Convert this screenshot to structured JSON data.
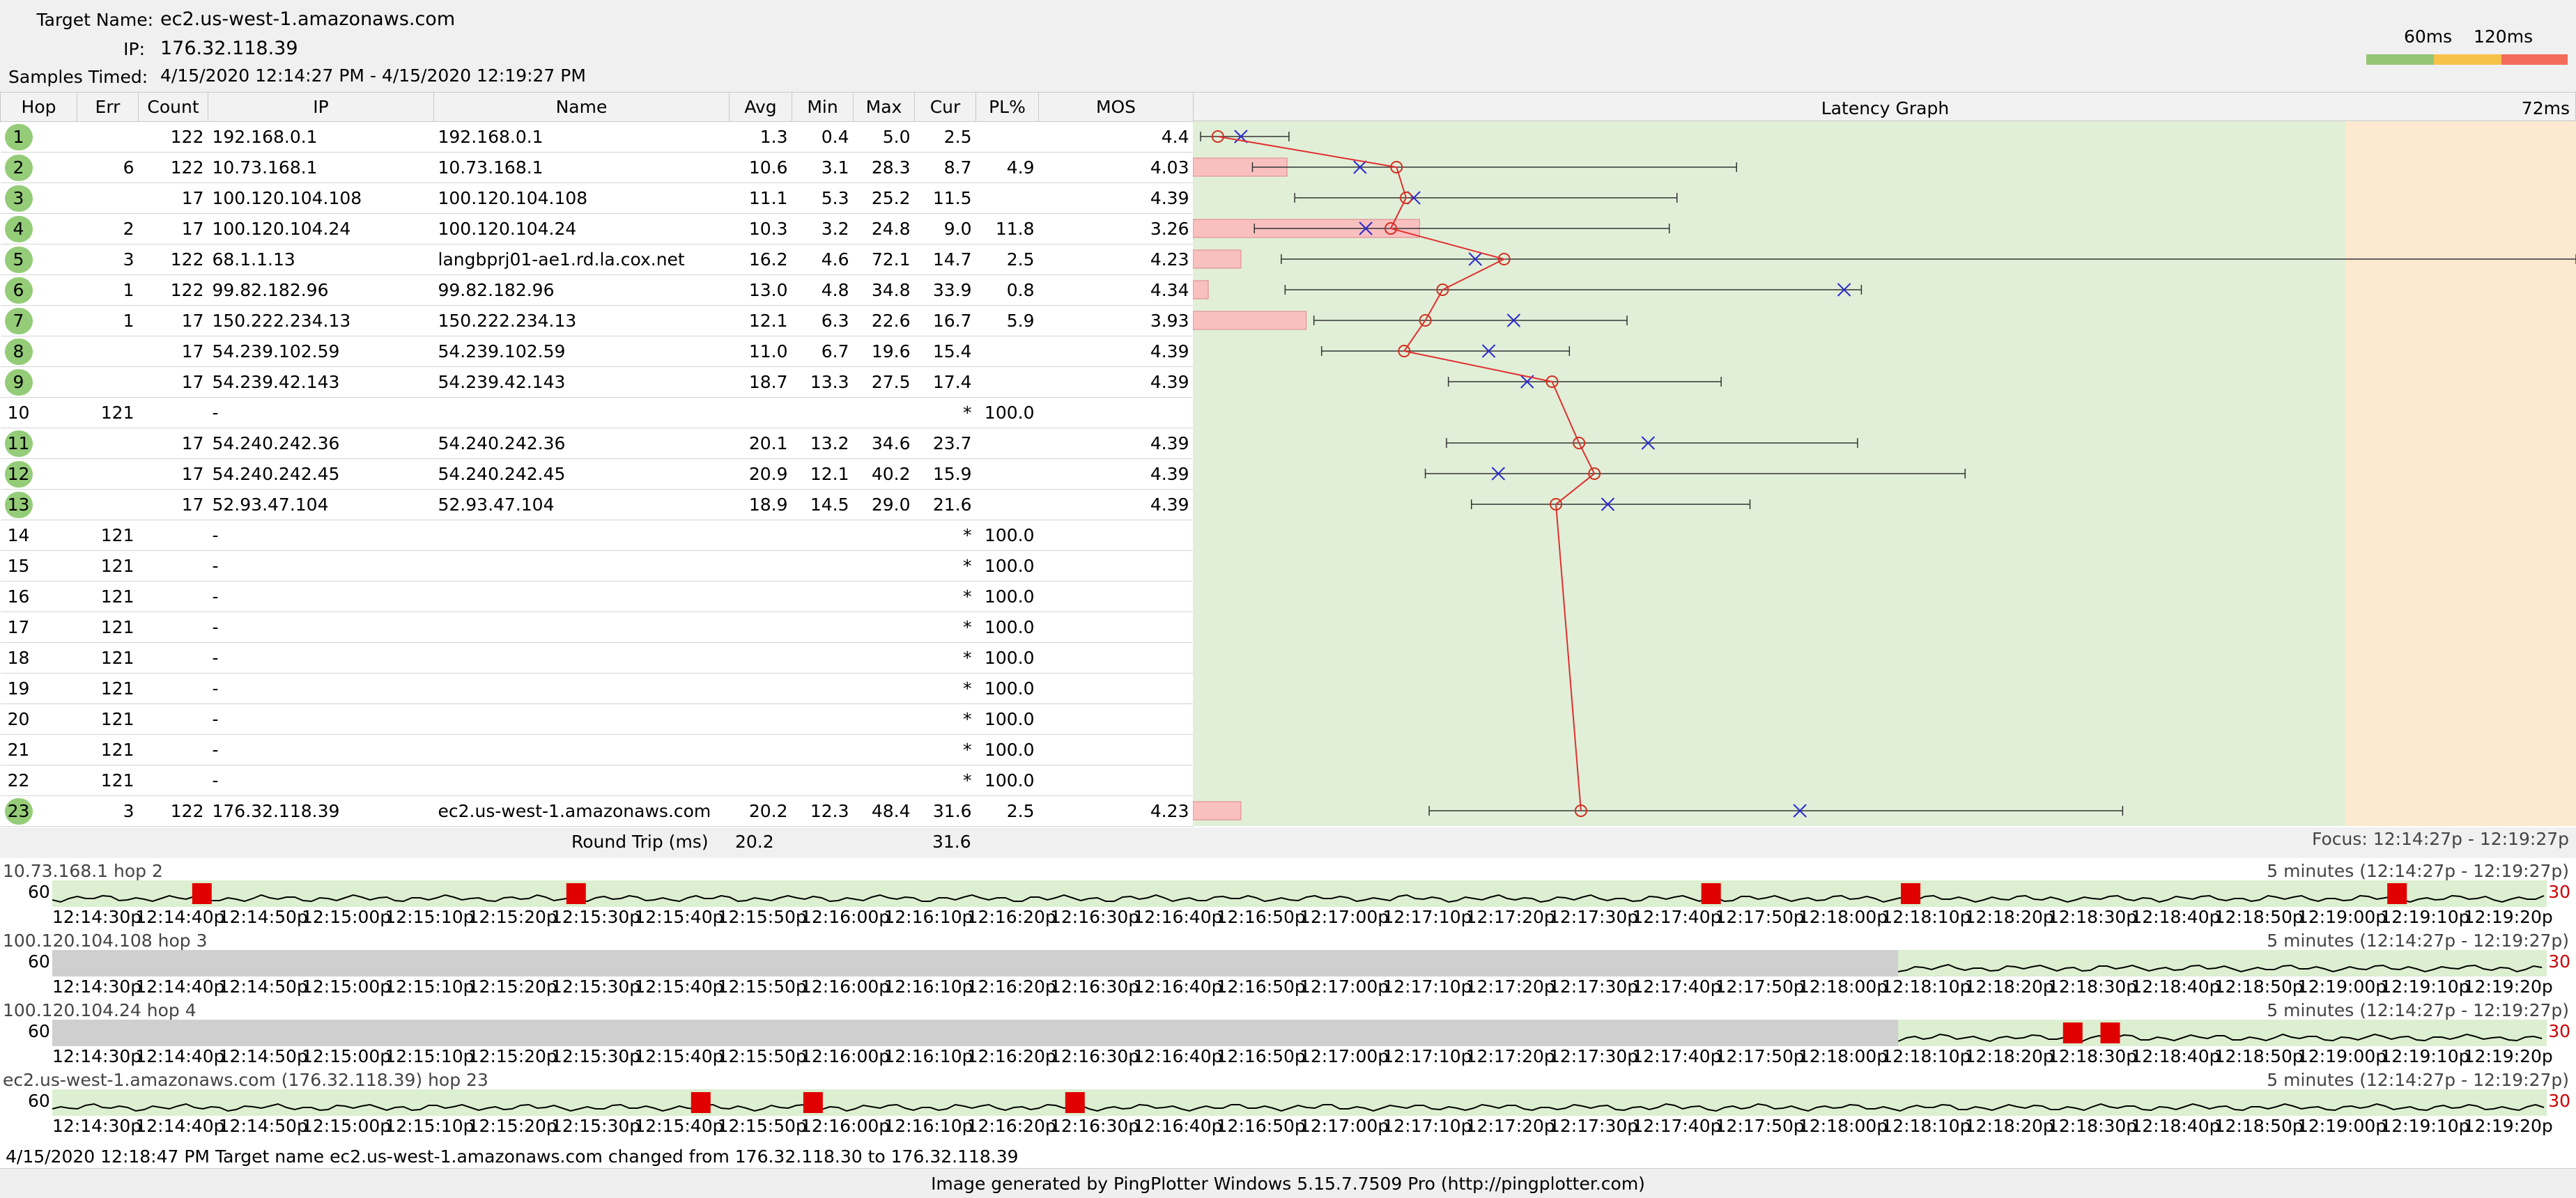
{
  "header": {
    "target_label": "Target Name:",
    "target_value": "ec2.us-west-1.amazonaws.com",
    "ip_label": "IP:",
    "ip_value": "176.32.118.39",
    "samples_label": "Samples Timed:",
    "samples_value": "4/15/2020 12:14:27 PM - 4/15/2020 12:19:27 PM"
  },
  "scale": {
    "label_60": "60ms",
    "label_120": "120ms",
    "colors": [
      "#93c572",
      "#f7c24a",
      "#f26b5b"
    ]
  },
  "table": {
    "columns": [
      "Hop",
      "Err",
      "Count",
      "IP",
      "Name",
      "Avg",
      "Min",
      "Max",
      "Cur",
      "PL%",
      "MOS",
      "Latency Graph",
      "72ms"
    ],
    "rows": [
      {
        "hop": "1",
        "err": "",
        "count": "122",
        "ip": "192.168.0.1",
        "name": "192.168.0.1",
        "avg": "1.3",
        "min": "0.4",
        "max": "5.0",
        "cur": "2.5",
        "pl": "",
        "mos": "4.4",
        "green": true
      },
      {
        "hop": "2",
        "err": "6",
        "count": "122",
        "ip": "10.73.168.1",
        "name": "10.73.168.1",
        "avg": "10.6",
        "min": "3.1",
        "max": "28.3",
        "cur": "8.7",
        "pl": "4.9",
        "mos": "4.03",
        "green": true
      },
      {
        "hop": "3",
        "err": "",
        "count": "17",
        "ip": "100.120.104.108",
        "name": "100.120.104.108",
        "avg": "11.1",
        "min": "5.3",
        "max": "25.2",
        "cur": "11.5",
        "pl": "",
        "mos": "4.39",
        "green": true
      },
      {
        "hop": "4",
        "err": "2",
        "count": "17",
        "ip": "100.120.104.24",
        "name": "100.120.104.24",
        "avg": "10.3",
        "min": "3.2",
        "max": "24.8",
        "cur": "9.0",
        "pl": "11.8",
        "mos": "3.26",
        "green": true
      },
      {
        "hop": "5",
        "err": "3",
        "count": "122",
        "ip": "68.1.1.13",
        "name": "langbprj01-ae1.rd.la.cox.net",
        "avg": "16.2",
        "min": "4.6",
        "max": "72.1",
        "cur": "14.7",
        "pl": "2.5",
        "mos": "4.23",
        "green": true
      },
      {
        "hop": "6",
        "err": "1",
        "count": "122",
        "ip": "99.82.182.96",
        "name": "99.82.182.96",
        "avg": "13.0",
        "min": "4.8",
        "max": "34.8",
        "cur": "33.9",
        "pl": "0.8",
        "mos": "4.34",
        "green": true
      },
      {
        "hop": "7",
        "err": "1",
        "count": "17",
        "ip": "150.222.234.13",
        "name": "150.222.234.13",
        "avg": "12.1",
        "min": "6.3",
        "max": "22.6",
        "cur": "16.7",
        "pl": "5.9",
        "mos": "3.93",
        "green": true
      },
      {
        "hop": "8",
        "err": "",
        "count": "17",
        "ip": "54.239.102.59",
        "name": "54.239.102.59",
        "avg": "11.0",
        "min": "6.7",
        "max": "19.6",
        "cur": "15.4",
        "pl": "",
        "mos": "4.39",
        "green": true
      },
      {
        "hop": "9",
        "err": "",
        "count": "17",
        "ip": "54.239.42.143",
        "name": "54.239.42.143",
        "avg": "18.7",
        "min": "13.3",
        "max": "27.5",
        "cur": "17.4",
        "pl": "",
        "mos": "4.39",
        "green": true
      },
      {
        "hop": "10",
        "err": "121",
        "count": "",
        "ip": "-",
        "name": "",
        "avg": "",
        "min": "",
        "max": "",
        "cur": "*",
        "pl": "100.0",
        "mos": "",
        "green": false
      },
      {
        "hop": "11",
        "err": "",
        "count": "17",
        "ip": "54.240.242.36",
        "name": "54.240.242.36",
        "avg": "20.1",
        "min": "13.2",
        "max": "34.6",
        "cur": "23.7",
        "pl": "",
        "mos": "4.39",
        "green": true
      },
      {
        "hop": "12",
        "err": "",
        "count": "17",
        "ip": "54.240.242.45",
        "name": "54.240.242.45",
        "avg": "20.9",
        "min": "12.1",
        "max": "40.2",
        "cur": "15.9",
        "pl": "",
        "mos": "4.39",
        "green": true
      },
      {
        "hop": "13",
        "err": "",
        "count": "17",
        "ip": "52.93.47.104",
        "name": "52.93.47.104",
        "avg": "18.9",
        "min": "14.5",
        "max": "29.0",
        "cur": "21.6",
        "pl": "",
        "mos": "4.39",
        "green": true
      },
      {
        "hop": "14",
        "err": "121",
        "count": "",
        "ip": "-",
        "name": "",
        "avg": "",
        "min": "",
        "max": "",
        "cur": "*",
        "pl": "100.0",
        "mos": "",
        "green": false
      },
      {
        "hop": "15",
        "err": "121",
        "count": "",
        "ip": "-",
        "name": "",
        "avg": "",
        "min": "",
        "max": "",
        "cur": "*",
        "pl": "100.0",
        "mos": "",
        "green": false
      },
      {
        "hop": "16",
        "err": "121",
        "count": "",
        "ip": "-",
        "name": "",
        "avg": "",
        "min": "",
        "max": "",
        "cur": "*",
        "pl": "100.0",
        "mos": "",
        "green": false
      },
      {
        "hop": "17",
        "err": "121",
        "count": "",
        "ip": "-",
        "name": "",
        "avg": "",
        "min": "",
        "max": "",
        "cur": "*",
        "pl": "100.0",
        "mos": "",
        "green": false
      },
      {
        "hop": "18",
        "err": "121",
        "count": "",
        "ip": "-",
        "name": "",
        "avg": "",
        "min": "",
        "max": "",
        "cur": "*",
        "pl": "100.0",
        "mos": "",
        "green": false
      },
      {
        "hop": "19",
        "err": "121",
        "count": "",
        "ip": "-",
        "name": "",
        "avg": "",
        "min": "",
        "max": "",
        "cur": "*",
        "pl": "100.0",
        "mos": "",
        "green": false
      },
      {
        "hop": "20",
        "err": "121",
        "count": "",
        "ip": "-",
        "name": "",
        "avg": "",
        "min": "",
        "max": "",
        "cur": "*",
        "pl": "100.0",
        "mos": "",
        "green": false
      },
      {
        "hop": "21",
        "err": "121",
        "count": "",
        "ip": "-",
        "name": "",
        "avg": "",
        "min": "",
        "max": "",
        "cur": "*",
        "pl": "100.0",
        "mos": "",
        "green": false
      },
      {
        "hop": "22",
        "err": "121",
        "count": "",
        "ip": "-",
        "name": "",
        "avg": "",
        "min": "",
        "max": "",
        "cur": "*",
        "pl": "100.0",
        "mos": "",
        "green": false
      },
      {
        "hop": "23",
        "err": "3",
        "count": "122",
        "ip": "176.32.118.39",
        "name": "ec2.us-west-1.amazonaws.com",
        "avg": "20.2",
        "min": "12.3",
        "max": "48.4",
        "cur": "31.6",
        "pl": "2.5",
        "mos": "4.23",
        "green": true
      }
    ],
    "round_trip_label": "Round Trip (ms)",
    "round_trip_avg": "20.2",
    "round_trip_cur": "31.6",
    "focus": "Focus: 12:14:27p - 12:19:27p"
  },
  "latency_graph": {
    "max_ms": 72,
    "threshold_ms": 60,
    "bg_ok": "#e1efd8",
    "bg_warn": "#fde9d0"
  },
  "mini_graphs": [
    {
      "title": "10.73.168.1 hop 2",
      "range": "5 minutes (12:14:27p - 12:19:27p)",
      "scale_top": "60",
      "scale_right": "30",
      "gray_until": 0,
      "loss_marks": [
        0.06,
        0.21,
        0.665,
        0.745,
        0.94
      ]
    },
    {
      "title": "100.120.104.108 hop 3",
      "range": "5 minutes (12:14:27p - 12:19:27p)",
      "scale_top": "60",
      "scale_right": "30",
      "gray_until": 0.74,
      "loss_marks": []
    },
    {
      "title": "100.120.104.24 hop 4",
      "range": "5 minutes (12:14:27p - 12:19:27p)",
      "scale_top": "60",
      "scale_right": "30",
      "gray_until": 0.74,
      "loss_marks": [
        0.81,
        0.825
      ]
    },
    {
      "title": "ec2.us-west-1.amazonaws.com (176.32.118.39) hop 23",
      "range": "5 minutes (12:14:27p - 12:19:27p)",
      "scale_top": "60",
      "scale_right": "30",
      "gray_until": 0,
      "loss_marks": [
        0.26,
        0.305,
        0.41
      ]
    }
  ],
  "time_ticks": [
    "12:14:30p",
    "12:14:40p",
    "12:14:50p",
    "12:15:00p",
    "12:15:10p",
    "12:15:20p",
    "12:15:30p",
    "12:15:40p",
    "12:15:50p",
    "12:16:00p",
    "12:16:10p",
    "12:16:20p",
    "12:16:30p",
    "12:16:40p",
    "12:16:50p",
    "12:17:00p",
    "12:17:10p",
    "12:17:20p",
    "12:17:30p",
    "12:17:40p",
    "12:17:50p",
    "12:18:00p",
    "12:18:10p",
    "12:18:20p",
    "12:18:30p",
    "12:18:40p",
    "12:18:50p",
    "12:19:00p",
    "12:19:10p",
    "12:19:20p"
  ],
  "footnote": "4/15/2020 12:18:47 PM Target name ec2.us-west-1.amazonaws.com changed from 176.32.118.30 to 176.32.118.39",
  "credits": "Image generated by PingPlotter Windows 5.15.7.7509 Pro (http://pingplotter.com)"
}
